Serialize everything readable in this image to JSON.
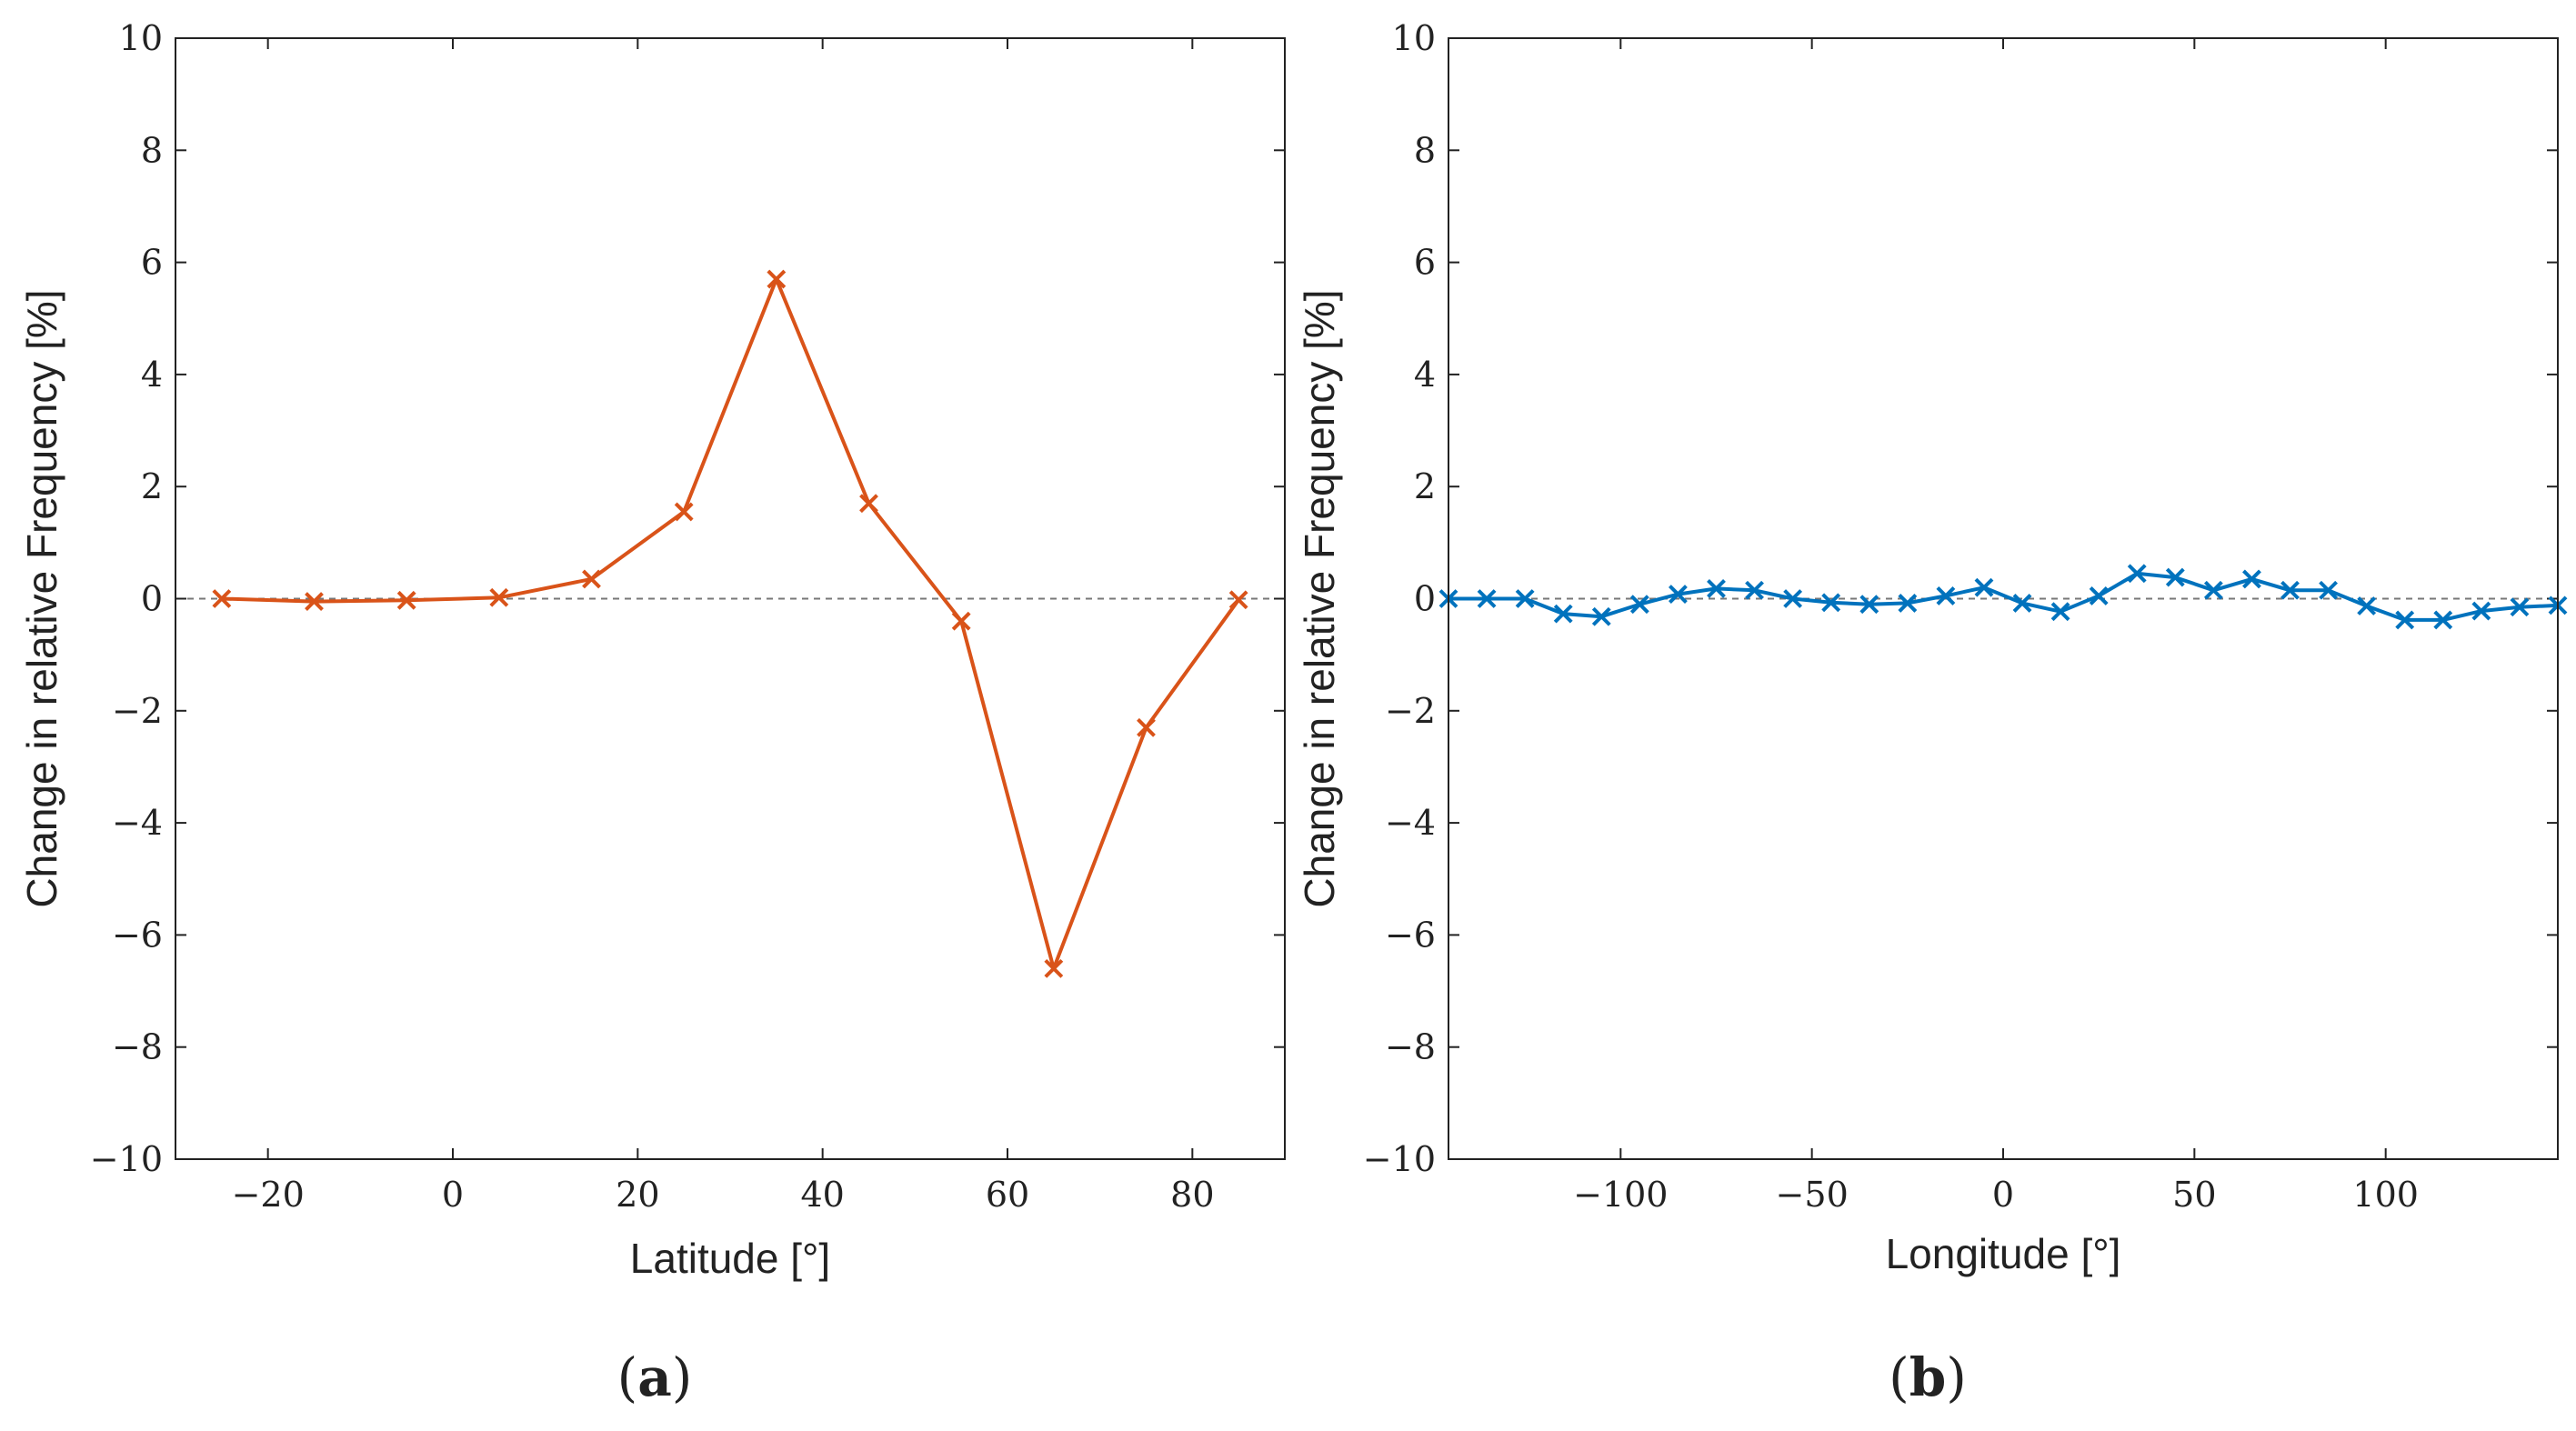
{
  "chart_data": [
    {
      "type": "line",
      "panel_label": "a",
      "title": "",
      "xlabel": "Latitude [°]",
      "ylabel": "Change in relative Frequency [%]",
      "xlim": [
        -30,
        90
      ],
      "ylim": [
        -10,
        10
      ],
      "xticks": [
        -20,
        0,
        20,
        40,
        60,
        80
      ],
      "yticks": [
        -10,
        -8,
        -6,
        -4,
        -2,
        0,
        2,
        4,
        6,
        8,
        10
      ],
      "reference_line": 0,
      "color": "#d95319",
      "marker": "x",
      "series": [
        {
          "name": "Latitude",
          "x": [
            -25,
            -15,
            -5,
            5,
            15,
            25,
            35,
            45,
            55,
            65,
            75,
            85
          ],
          "y": [
            0.0,
            -0.05,
            -0.03,
            0.02,
            0.35,
            1.55,
            5.7,
            1.7,
            -0.4,
            -6.6,
            -2.3,
            -0.02
          ]
        }
      ]
    },
    {
      "type": "line",
      "panel_label": "b",
      "title": "",
      "xlabel": "Longitude [°]",
      "ylabel": "Change in relative Frequency [%]",
      "xlim": [
        -145,
        145
      ],
      "ylim": [
        -10,
        10
      ],
      "xticks": [
        -100,
        -50,
        0,
        50,
        100
      ],
      "yticks": [
        -10,
        -8,
        -6,
        -4,
        -2,
        0,
        2,
        4,
        6,
        8,
        10
      ],
      "reference_line": 0,
      "color": "#0072bd",
      "marker": "x",
      "series": [
        {
          "name": "Longitude",
          "x": [
            -145,
            -135,
            -125,
            -115,
            -105,
            -95,
            -85,
            -75,
            -65,
            -55,
            -45,
            -35,
            -25,
            -15,
            -5,
            5,
            15,
            25,
            35,
            45,
            55,
            65,
            75,
            85,
            95,
            105,
            115,
            125,
            135,
            145
          ],
          "y": [
            0.0,
            0.0,
            0.0,
            -0.27,
            -0.32,
            -0.1,
            0.08,
            0.18,
            0.15,
            0.0,
            -0.07,
            -0.1,
            -0.08,
            0.05,
            0.2,
            -0.08,
            -0.23,
            0.05,
            0.45,
            0.38,
            0.15,
            0.35,
            0.15,
            0.15,
            -0.13,
            -0.38,
            -0.38,
            -0.22,
            -0.15,
            -0.12
          ]
        }
      ]
    }
  ]
}
